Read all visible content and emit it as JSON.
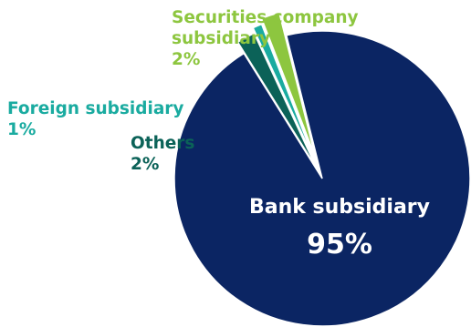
{
  "chart_data": {
    "type": "pie",
    "title": "",
    "slices": [
      {
        "name": "Bank subsidiary",
        "value": 95,
        "label": "95%",
        "color": "#0b2563",
        "text_color": "#ffffff"
      },
      {
        "name": "Securities company subsidiary",
        "value": 2,
        "label": "2%",
        "color": "#8dc63f",
        "text_color": "#8dc63f",
        "exploded": true
      },
      {
        "name": "Foreign subsidiary",
        "value": 1,
        "label": "1%",
        "color": "#1aaba0",
        "text_color": "#1aaba0",
        "exploded": true
      },
      {
        "name": "Others",
        "value": 2,
        "label": "2%",
        "color": "#0b6258",
        "text_color": "#0b6258",
        "exploded": true
      }
    ],
    "labels": {
      "securities": {
        "line1": "Securities company",
        "line2": "subsidiary",
        "pct": "2%"
      },
      "foreign": {
        "line1": "Foreign subsidiary",
        "pct": "1%"
      },
      "others": {
        "line1": "Others",
        "pct": "2%"
      },
      "bank": {
        "line1": "Bank subsidiary",
        "pct": "95%"
      }
    },
    "legend": "none"
  }
}
